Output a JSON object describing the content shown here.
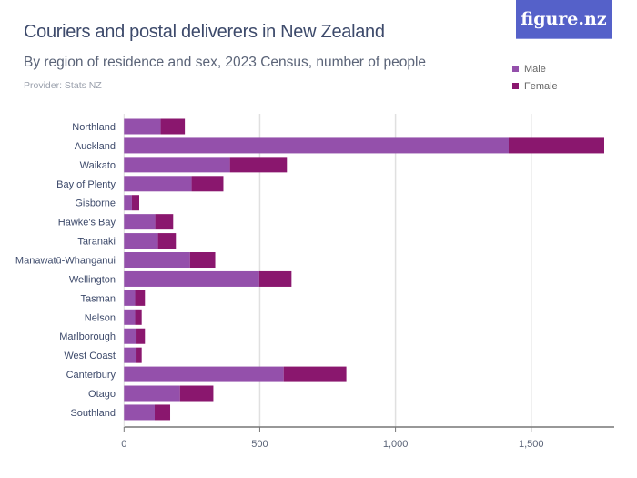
{
  "header": {
    "title": "Couriers and postal deliverers in New Zealand",
    "subtitle": "By region of residence and sex, 2023 Census, number of people",
    "provider": "Provider: Stats NZ",
    "logo": "figure.nz"
  },
  "colors": {
    "male": "#9450ab",
    "female": "#8a176e",
    "logo_bg": "#5561c9"
  },
  "chart_data": {
    "type": "bar",
    "orientation": "horizontal",
    "stacked": true,
    "title": "Couriers and postal deliverers in New Zealand",
    "subtitle": "By region of residence and sex, 2023 Census, number of people",
    "categories": [
      "Northland",
      "Auckland",
      "Waikato",
      "Bay of Plenty",
      "Gisborne",
      "Hawke's Bay",
      "Taranaki",
      "Manawatū-Whanganui",
      "Wellington",
      "Tasman",
      "Nelson",
      "Marlborough",
      "West Coast",
      "Canterbury",
      "Otago",
      "Southland"
    ],
    "series": [
      {
        "name": "Male",
        "values": [
          135,
          1417,
          390,
          249,
          29,
          115,
          125,
          243,
          498,
          41,
          41,
          46,
          46,
          588,
          206,
          113
        ]
      },
      {
        "name": "Female",
        "values": [
          89,
          352,
          210,
          117,
          27,
          66,
          66,
          93,
          119,
          36,
          24,
          31,
          19,
          231,
          123,
          57
        ]
      }
    ],
    "xlim": [
      0,
      1780
    ],
    "xticks": [
      0,
      500,
      1000,
      1500
    ],
    "xtick_labels": [
      "0",
      "500",
      "1,000",
      "1,500"
    ],
    "grid": true,
    "legend": "top-right"
  }
}
